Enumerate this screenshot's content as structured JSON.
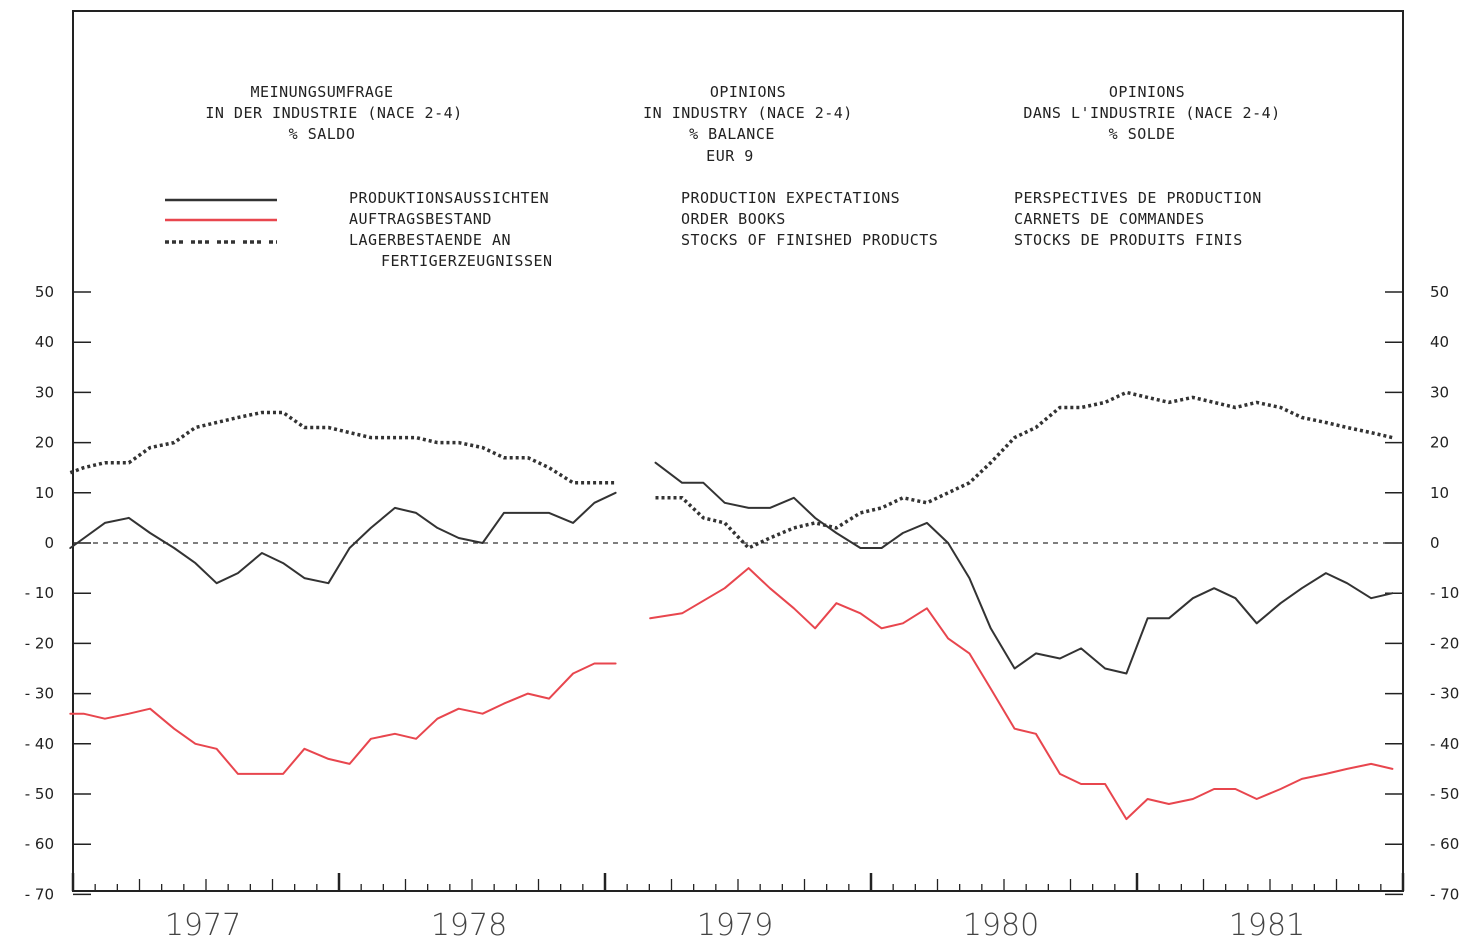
{
  "header": {
    "de": [
      "MEINUNGSUMFRAGE",
      "IN DER INDUSTRIE (NACE 2-4)",
      "% SALDO"
    ],
    "en": [
      "OPINIONS",
      "IN INDUSTRY (NACE 2-4)",
      "% BALANCE",
      "EUR 9"
    ],
    "fr": [
      "OPINIONS",
      "DANS L'INDUSTRIE (NACE 2-4)",
      "% SOLDE"
    ]
  },
  "legend": {
    "de": [
      "PRODUKTIONSAUSSICHTEN",
      "AUFTRAGSBESTAND",
      "LAGERBESTAENDE AN",
      "FERTIGERZEUGNISSEN"
    ],
    "en": [
      "PRODUCTION EXPECTATIONS",
      "ORDER BOOKS",
      "STOCKS OF FINISHED PRODUCTS"
    ],
    "fr": [
      "PERSPECTIVES DE PRODUCTION",
      "CARNETS DE COMMANDES",
      "STOCKS DE PRODUITS FINIS"
    ]
  },
  "colors": {
    "production": "#333333",
    "orders": "#e8464e",
    "stocks": "#333333",
    "frame": "#222222"
  },
  "chart_data": {
    "type": "line",
    "ylim": [
      -70,
      55
    ],
    "yticks": [
      50,
      40,
      30,
      20,
      10,
      0,
      -10,
      -20,
      -30,
      -40,
      -50,
      -60,
      -70
    ],
    "ytick_labels": [
      "50",
      "40",
      "30",
      "20",
      "10",
      "0",
      "- 10",
      "- 20",
      "- 30",
      "- 40",
      "- 50",
      "- 60",
      "- 70"
    ],
    "xlim": [
      1977.0,
      1982.0
    ],
    "years": [
      "1977",
      "1978",
      "1979",
      "1980",
      "1981"
    ],
    "zero_line": "dashed",
    "series": [
      {
        "key": "production",
        "style": "solid",
        "segments": [
          {
            "x": [
              1976.99,
              1977.12,
              1977.21,
              1977.29,
              1977.38,
              1977.46,
              1977.54,
              1977.62,
              1977.71,
              1977.79,
              1977.87,
              1977.96,
              1978.04,
              1978.12,
              1978.21,
              1978.29,
              1978.37,
              1978.45,
              1978.54,
              1978.62,
              1978.71,
              1978.79,
              1978.88,
              1978.96,
              1979.04
            ],
            "y": [
              -1,
              4,
              5,
              2,
              -1,
              -4,
              -8,
              -6,
              -2,
              -4,
              -7,
              -8,
              -1,
              3,
              7,
              6,
              3,
              1,
              0,
              6,
              6,
              6,
              4,
              8,
              10
            ]
          },
          {
            "x": [
              1979.19,
              1979.29,
              1979.37,
              1979.45,
              1979.54,
              1979.62,
              1979.71,
              1979.79,
              1979.87,
              1979.96,
              1980.04,
              1980.12,
              1980.21,
              1980.29,
              1980.37,
              1980.45,
              1980.54,
              1980.62,
              1980.71,
              1980.79,
              1980.88,
              1980.96,
              1981.04,
              1981.12,
              1981.21,
              1981.29,
              1981.37,
              1981.45,
              1981.54,
              1981.62,
              1981.71,
              1981.79,
              1981.88,
              1981.96
            ],
            "y": [
              16,
              12,
              12,
              8,
              7,
              7,
              9,
              5,
              2,
              -1,
              -1,
              2,
              4,
              0,
              -7,
              -17,
              -25,
              -22,
              -23,
              -21,
              -25,
              -26,
              -15,
              -15,
              -11,
              -9,
              -11,
              -16,
              -12,
              -9,
              -6,
              -8,
              -11,
              -10
            ]
          }
        ]
      },
      {
        "key": "orders",
        "style": "solid",
        "segments": [
          {
            "x": [
              1976.99,
              1977.04,
              1977.12,
              1977.21,
              1977.29,
              1977.38,
              1977.46,
              1977.54,
              1977.62,
              1977.71,
              1977.79,
              1977.87,
              1977.96,
              1978.04,
              1978.12,
              1978.21,
              1978.29,
              1978.37,
              1978.45,
              1978.54,
              1978.62,
              1978.71,
              1978.79,
              1978.88,
              1978.96,
              1979.04
            ],
            "y": [
              -34,
              -34,
              -35,
              -34,
              -33,
              -37,
              -40,
              -41,
              -46,
              -46,
              -46,
              -41,
              -43,
              -44,
              -39,
              -38,
              -39,
              -35,
              -33,
              -34,
              -32,
              -30,
              -31,
              -26,
              -24,
              -24
            ]
          },
          {
            "x": [
              1979.17,
              1979.29,
              1979.45,
              1979.54,
              1979.62,
              1979.71,
              1979.79,
              1979.87,
              1979.96,
              1980.04,
              1980.12,
              1980.21,
              1980.29,
              1980.37,
              1980.45,
              1980.54,
              1980.62,
              1980.71,
              1980.79,
              1980.88,
              1980.96,
              1981.04,
              1981.12,
              1981.21,
              1981.29,
              1981.37,
              1981.45,
              1981.54,
              1981.62,
              1981.71,
              1981.79,
              1981.88,
              1981.96
            ],
            "y": [
              -15,
              -14,
              -9,
              -5,
              -9,
              -13,
              -17,
              -12,
              -14,
              -17,
              -16,
              -13,
              -19,
              -22,
              -29,
              -37,
              -38,
              -46,
              -48,
              -48,
              -55,
              -51,
              -52,
              -51,
              -49,
              -49,
              -51,
              -49,
              -47,
              -46,
              -45,
              -44,
              -45
            ]
          }
        ]
      },
      {
        "key": "stocks",
        "style": "dotted",
        "segments": [
          {
            "x": [
              1976.99,
              1977.04,
              1977.12,
              1977.21,
              1977.29,
              1977.38,
              1977.46,
              1977.54,
              1977.62,
              1977.71,
              1977.79,
              1977.87,
              1977.96,
              1978.04,
              1978.12,
              1978.21,
              1978.29,
              1978.37,
              1978.45,
              1978.54,
              1978.62,
              1978.71,
              1978.79,
              1978.88,
              1978.96,
              1979.04
            ],
            "y": [
              14,
              15,
              16,
              16,
              19,
              20,
              23,
              24,
              25,
              26,
              26,
              23,
              23,
              22,
              21,
              21,
              21,
              20,
              20,
              19,
              17,
              17,
              15,
              12,
              12,
              12
            ]
          },
          {
            "x": [
              1979.19,
              1979.29,
              1979.37,
              1979.45,
              1979.54,
              1979.62,
              1979.71,
              1979.79,
              1979.87,
              1979.96,
              1980.04,
              1980.12,
              1980.21,
              1980.29,
              1980.37,
              1980.45,
              1980.54,
              1980.62,
              1980.71,
              1980.79,
              1980.88,
              1980.96,
              1981.04,
              1981.12,
              1981.21,
              1981.29,
              1981.37,
              1981.45,
              1981.54,
              1981.62,
              1981.71,
              1981.79,
              1981.88,
              1981.96
            ],
            "y": [
              9,
              9,
              5,
              4,
              -1,
              1,
              3,
              4,
              3,
              6,
              7,
              9,
              8,
              10,
              12,
              16,
              21,
              23,
              27,
              27,
              28,
              30,
              29,
              28,
              29,
              28,
              27,
              28,
              27,
              25,
              24,
              23,
              22,
              21
            ]
          }
        ]
      }
    ]
  }
}
